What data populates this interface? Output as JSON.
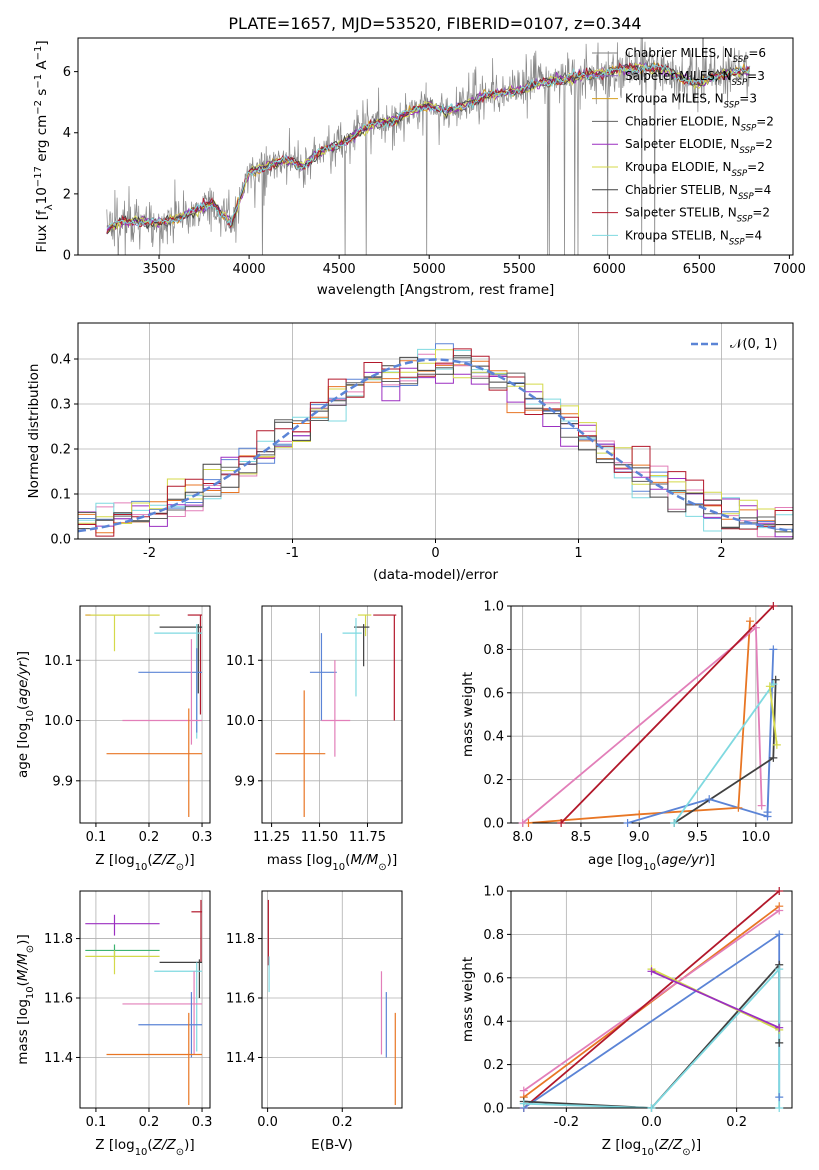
{
  "figure_title": "PLATE=1657, MJD=53520, FIBERID=0107, z=0.344",
  "model_colors": [
    "#7f7f7f",
    "#9467bd",
    "#d6a020",
    "#606060",
    "#9b2fc1",
    "#d4d94a",
    "#404040",
    "#b2182b",
    "#7fd9e0"
  ],
  "chart_data": [
    {
      "type": "line",
      "id": "spectrum",
      "title": "PLATE=1657, MJD=53520, FIBERID=0107, z=0.344",
      "xlabel": "wavelength [Angstrom, rest frame]",
      "ylabel": "Flux [f_λ 10^-17 erg cm^-2 s^-1 A^-1]",
      "xlim": [
        3050,
        7020
      ],
      "ylim": [
        0,
        7.1
      ],
      "xticks": [
        3500,
        4000,
        4500,
        5000,
        5500,
        6000,
        6500,
        7000
      ],
      "yticks": [
        0,
        2,
        4,
        6
      ],
      "legend_position": "top-right",
      "legend": [
        {
          "base": "Chabrier MILES, N",
          "sub": "SSP",
          "tail": "=6",
          "color": "#7f7f7f"
        },
        {
          "base": "Salpeter MILES, N",
          "sub": "SSP",
          "tail": "=3",
          "color": "#9467bd"
        },
        {
          "base": "Kroupa MILES, N",
          "sub": "SSP",
          "tail": "=3",
          "color": "#d6a020"
        },
        {
          "base": "Chabrier ELODIE, N",
          "sub": "SSP",
          "tail": "=2",
          "color": "#606060"
        },
        {
          "base": "Salpeter ELODIE, N",
          "sub": "SSP",
          "tail": "=2",
          "color": "#9b2fc1"
        },
        {
          "base": "Kroupa ELODIE, N",
          "sub": "SSP",
          "tail": "=2",
          "color": "#d4d94a"
        },
        {
          "base": "Chabrier STELIB, N",
          "sub": "SSP",
          "tail": "=4",
          "color": "#404040"
        },
        {
          "base": "Salpeter STELIB, N",
          "sub": "SSP",
          "tail": "=2",
          "color": "#b2182b"
        },
        {
          "base": "Kroupa STELIB, N",
          "sub": "SSP",
          "tail": "=4",
          "color": "#7fd9e0"
        }
      ],
      "continuum": {
        "wavelength": [
          3200,
          3300,
          3400,
          3500,
          3600,
          3700,
          3800,
          3900,
          4000,
          4100,
          4200,
          4300,
          4400,
          4500,
          4600,
          4700,
          4800,
          4900,
          5000,
          5100,
          5200,
          5300,
          5400,
          5500,
          5600,
          5700,
          5800,
          5900,
          6000,
          6100,
          6200,
          6300,
          6400,
          6500,
          6600,
          6700,
          6800
        ],
        "flux": [
          0.8,
          1.1,
          1.1,
          1.05,
          1.2,
          1.45,
          1.7,
          1.0,
          2.7,
          2.9,
          3.1,
          2.9,
          3.4,
          3.6,
          4.0,
          4.3,
          4.4,
          4.7,
          4.9,
          4.7,
          4.9,
          5.2,
          5.3,
          5.4,
          5.6,
          5.7,
          5.8,
          5.9,
          6.0,
          6.1,
          6.1,
          6.1,
          5.8,
          5.6,
          5.9,
          6.0,
          6.0
        ]
      }
    },
    {
      "type": "line",
      "id": "residuals",
      "xlabel": "(data-model)/error",
      "ylabel": "Normed distribution",
      "xlim": [
        -2.5,
        2.5
      ],
      "ylim": [
        0,
        0.48
      ],
      "xticks": [
        -2,
        -1,
        0,
        1,
        2
      ],
      "yticks": [
        0.0,
        0.1,
        0.2,
        0.3,
        0.4
      ],
      "legend_position": "top-right",
      "legend": [
        {
          "label": "𝒩(0, 1)",
          "color": "#5b84d6",
          "style": "dashed"
        }
      ],
      "gaussian": {
        "mean": 0,
        "sigma": 1
      }
    },
    {
      "type": "scatter",
      "id": "age-vs-Z",
      "xlabel": "Z [log10(Z/Z⊙)]",
      "ylabel": "age [log10(age/yr)]",
      "xlim": [
        0.07,
        0.315
      ],
      "ylim": [
        9.83,
        10.19
      ],
      "xticks": [
        0.1,
        0.2,
        0.3
      ],
      "yticks": [
        9.9,
        10.0,
        10.1
      ],
      "points": [
        {
          "x": 0.08,
          "y": 10.175,
          "xerr": [
            0.08,
            0.22
          ],
          "yerr": [
            10.175,
            10.175
          ],
          "color": "#d6a020"
        },
        {
          "x": 0.135,
          "y": 10.175,
          "xerr": [
            0.09,
            0.22
          ],
          "yerr": [
            10.115,
            10.175
          ],
          "color": "#d4d94a"
        },
        {
          "x": 0.297,
          "y": 10.175,
          "xerr": [
            0.273,
            0.3
          ],
          "yerr": [
            10.01,
            10.175
          ],
          "color": "#b2182b"
        },
        {
          "x": 0.293,
          "y": 10.155,
          "xerr": [
            0.22,
            0.3
          ],
          "yerr": [
            10.045,
            10.16
          ],
          "color": "#404040"
        },
        {
          "x": 0.29,
          "y": 10.145,
          "xerr": [
            0.21,
            0.3
          ],
          "yerr": [
            9.97,
            10.16
          ],
          "color": "#7fd9e0"
        },
        {
          "x": 0.29,
          "y": 10.08,
          "xerr": [
            0.18,
            0.3
          ],
          "yerr": [
            9.98,
            10.12
          ],
          "color": "#5b84d6"
        },
        {
          "x": 0.28,
          "y": 10.0,
          "xerr": [
            0.15,
            0.3
          ],
          "yerr": [
            9.96,
            10.135
          ],
          "color": "#e27fb9"
        },
        {
          "x": 0.275,
          "y": 9.945,
          "xerr": [
            0.12,
            0.3
          ],
          "yerr": [
            9.84,
            10.02
          ],
          "color": "#e87624"
        }
      ]
    },
    {
      "type": "scatter",
      "id": "age-vs-mass",
      "xlabel": "mass [log10(M/M⊙)]",
      "ylabel": "",
      "xlim": [
        11.2,
        11.93
      ],
      "ylim": [
        9.83,
        10.19
      ],
      "xticks": [
        11.25,
        11.5,
        11.75
      ],
      "yticks": [
        9.9,
        10.0,
        10.1
      ],
      "points": [
        {
          "x": 11.74,
          "y": 10.175,
          "xerr": [
            11.7,
            11.77
          ],
          "yerr": [
            10.14,
            10.175
          ],
          "color": "#d4d94a"
        },
        {
          "x": 11.89,
          "y": 10.175,
          "xerr": [
            11.78,
            11.9
          ],
          "yerr": [
            10.0,
            10.175
          ],
          "color": "#b2182b"
        },
        {
          "x": 11.73,
          "y": 10.155,
          "xerr": [
            11.68,
            11.76
          ],
          "yerr": [
            10.09,
            10.16
          ],
          "color": "#404040"
        },
        {
          "x": 11.69,
          "y": 10.145,
          "xerr": [
            11.62,
            11.72
          ],
          "yerr": [
            10.04,
            10.17
          ],
          "color": "#7fd9e0"
        },
        {
          "x": 11.51,
          "y": 10.08,
          "xerr": [
            11.45,
            11.59
          ],
          "yerr": [
            10.0,
            10.145
          ],
          "color": "#5b84d6"
        },
        {
          "x": 11.58,
          "y": 10.0,
          "xerr": [
            11.51,
            11.66
          ],
          "yerr": [
            9.94,
            10.1
          ],
          "color": "#e27fb9"
        },
        {
          "x": 11.42,
          "y": 9.945,
          "xerr": [
            11.27,
            11.53
          ],
          "yerr": [
            9.84,
            10.05
          ],
          "color": "#e87624"
        }
      ]
    },
    {
      "type": "line",
      "id": "massweight-vs-age",
      "xlabel": "age [log10(age/yr)]",
      "ylabel": "mass weight",
      "xlim": [
        7.9,
        10.31
      ],
      "ylim": [
        0,
        1.0
      ],
      "xticks": [
        8.0,
        8.5,
        9.0,
        9.5,
        10.0
      ],
      "yticks": [
        0.0,
        0.2,
        0.4,
        0.6,
        0.8,
        1.0
      ],
      "series": [
        {
          "color": "#e87624",
          "x": [
            8.05,
            9.0,
            9.85,
            9.95
          ],
          "y": [
            0.0,
            0.04,
            0.07,
            0.93
          ]
        },
        {
          "color": "#e27fb9",
          "x": [
            8.0,
            10.0,
            10.05
          ],
          "y": [
            0.0,
            0.9,
            0.08
          ]
        },
        {
          "color": "#b2182b",
          "x": [
            8.33,
            10.15
          ],
          "y": [
            0.0,
            1.0
          ]
        },
        {
          "color": "#5b84d6",
          "x": [
            8.9,
            9.6,
            10.1,
            10.15,
            10.1
          ],
          "y": [
            0.0,
            0.11,
            0.03,
            0.8,
            0.05
          ]
        },
        {
          "color": "#404040",
          "x": [
            9.3,
            10.15,
            10.17
          ],
          "y": [
            0.0,
            0.3,
            0.66
          ]
        },
        {
          "color": "#7fd9e0",
          "x": [
            9.3,
            10.15
          ],
          "y": [
            0.0,
            0.64
          ]
        },
        {
          "color": "#d4d94a",
          "x": [
            10.12,
            10.18
          ],
          "y": [
            0.63,
            0.36
          ]
        }
      ]
    },
    {
      "type": "scatter",
      "id": "mass-vs-Z",
      "xlabel": "Z [log10(Z/Z⊙)]",
      "ylabel": "mass [log10(M/M⊙)]",
      "xlim": [
        0.07,
        0.315
      ],
      "ylim": [
        11.23,
        11.96
      ],
      "xticks": [
        0.1,
        0.2,
        0.3
      ],
      "yticks": [
        11.4,
        11.6,
        11.8
      ],
      "points": [
        {
          "x": 0.135,
          "y": 11.85,
          "xerr": [
            0.08,
            0.22
          ],
          "yerr": [
            11.81,
            11.88
          ],
          "color": "#9b2fc1"
        },
        {
          "x": 0.135,
          "y": 11.76,
          "xerr": [
            0.08,
            0.22
          ],
          "yerr": [
            11.73,
            11.78
          ],
          "color": "#3cb371"
        },
        {
          "x": 0.135,
          "y": 11.74,
          "xerr": [
            0.08,
            0.22
          ],
          "yerr": [
            11.68,
            11.76
          ],
          "color": "#d4d94a"
        },
        {
          "x": 0.298,
          "y": 11.89,
          "xerr": [
            0.28,
            0.3
          ],
          "yerr": [
            11.72,
            11.93
          ],
          "color": "#b2182b"
        },
        {
          "x": 0.295,
          "y": 11.72,
          "xerr": [
            0.22,
            0.3
          ],
          "yerr": [
            11.6,
            11.73
          ],
          "color": "#404040"
        },
        {
          "x": 0.29,
          "y": 11.69,
          "xerr": [
            0.21,
            0.3
          ],
          "yerr": [
            11.42,
            11.72
          ],
          "color": "#7fd9e0"
        },
        {
          "x": 0.285,
          "y": 11.58,
          "xerr": [
            0.15,
            0.3
          ],
          "yerr": [
            11.41,
            11.69
          ],
          "color": "#e27fb9"
        },
        {
          "x": 0.28,
          "y": 11.51,
          "xerr": [
            0.18,
            0.3
          ],
          "yerr": [
            11.4,
            11.62
          ],
          "color": "#5b84d6"
        },
        {
          "x": 0.275,
          "y": 11.41,
          "xerr": [
            0.12,
            0.3
          ],
          "yerr": [
            11.24,
            11.55
          ],
          "color": "#e87624"
        }
      ]
    },
    {
      "type": "scatter",
      "id": "mass-vs-EBV",
      "xlabel": "E(B-V)",
      "ylabel": "",
      "xlim": [
        -0.015,
        0.36
      ],
      "ylim": [
        11.23,
        11.96
      ],
      "xticks": [
        0.0,
        0.2
      ],
      "yticks": [
        11.4,
        11.6,
        11.8
      ],
      "points": [
        {
          "x": 0.002,
          "y": 11.88,
          "yerr": [
            11.71,
            11.93
          ],
          "color": "#b2182b"
        },
        {
          "x": 0.004,
          "y": 11.7,
          "yerr": [
            11.62,
            11.74
          ],
          "color": "#7fd9e0"
        },
        {
          "x": 0.305,
          "y": 11.6,
          "yerr": [
            11.41,
            11.69
          ],
          "color": "#e27fb9"
        },
        {
          "x": 0.318,
          "y": 11.55,
          "yerr": [
            11.4,
            11.62
          ],
          "color": "#5b84d6"
        },
        {
          "x": 0.342,
          "y": 11.4,
          "yerr": [
            11.24,
            11.55
          ],
          "color": "#e87624"
        }
      ]
    },
    {
      "type": "line",
      "id": "massweight-vs-Z",
      "xlabel": "Z [log10(Z/Z⊙)]",
      "ylabel": "mass weight",
      "xlim": [
        -0.33,
        0.33
      ],
      "ylim": [
        0,
        1.0
      ],
      "xticks": [
        -0.2,
        0.0,
        0.2
      ],
      "yticks": [
        0.0,
        0.2,
        0.4,
        0.6,
        0.8,
        1.0
      ],
      "series": [
        {
          "color": "#e87624",
          "x": [
            -0.3,
            0.3
          ],
          "y": [
            0.05,
            0.93
          ]
        },
        {
          "color": "#e27fb9",
          "x": [
            -0.3,
            0.3
          ],
          "y": [
            0.08,
            0.91
          ]
        },
        {
          "color": "#b2182b",
          "x": [
            -0.3,
            0.3
          ],
          "y": [
            0.0,
            1.0
          ]
        },
        {
          "color": "#5b84d6",
          "x": [
            -0.3,
            0.3,
            0.3
          ],
          "y": [
            0.0,
            0.8,
            0.05
          ]
        },
        {
          "color": "#404040",
          "x": [
            -0.3,
            0.0,
            0.3,
            0.3
          ],
          "y": [
            0.03,
            0.0,
            0.66,
            0.3
          ]
        },
        {
          "color": "#7fd9e0",
          "x": [
            -0.3,
            0.0,
            0.3,
            0.3
          ],
          "y": [
            0.02,
            0.0,
            0.64,
            0.0
          ]
        },
        {
          "color": "#d4d94a",
          "x": [
            0.0,
            0.3
          ],
          "y": [
            0.64,
            0.36
          ]
        },
        {
          "color": "#9b2fc1",
          "x": [
            0.0,
            0.3
          ],
          "y": [
            0.63,
            0.37
          ]
        }
      ]
    }
  ]
}
